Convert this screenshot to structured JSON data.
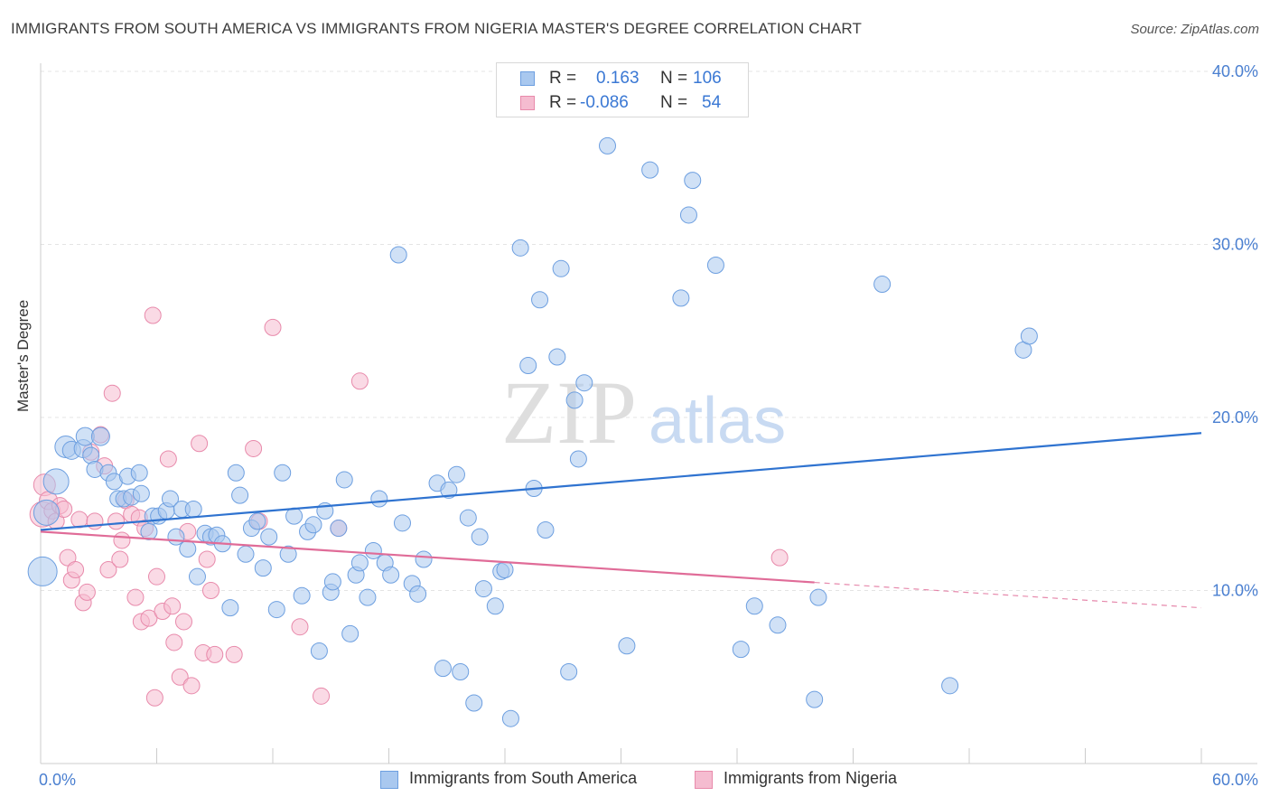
{
  "title": "IMMIGRANTS FROM SOUTH AMERICA VS IMMIGRANTS FROM NIGERIA MASTER'S DEGREE CORRELATION CHART",
  "source": "Source: ZipAtlas.com",
  "legend": {
    "rows": [
      {
        "r_label": "R =",
        "r_value": "0.163",
        "n_label": "N =",
        "n_value": "106"
      },
      {
        "r_label": "R =",
        "r_value": "-0.086",
        "n_label": "N =",
        "n_value": "54"
      }
    ]
  },
  "bottom_legend": {
    "series1": "Immigrants from South America",
    "series2": "Immigrants from Nigeria"
  },
  "colors": {
    "blue_fill": "#a9c8ef",
    "blue_stroke": "#6d9fe0",
    "blue_line": "#2f73d0",
    "pink_fill": "#f5bcd0",
    "pink_stroke": "#e88aab",
    "pink_line": "#e06c98",
    "accent_text": "#3a78d4"
  },
  "chart_data": {
    "type": "scatter",
    "ylabel": "Master's Degree",
    "xlim": [
      0,
      60
    ],
    "ylim": [
      0,
      41.5
    ],
    "x_ticks_labels": [
      "0.0%",
      "60.0%"
    ],
    "y_ticks": [
      10,
      20,
      30,
      40
    ],
    "y_ticks_labels": [
      "10.0%",
      "20.0%",
      "30.0%",
      "40.0%"
    ],
    "grid": true,
    "watermark": "ZIPatlas",
    "series": [
      {
        "name": "Immigrants from South America",
        "trend": {
          "x0": 0,
          "y0": 13.5,
          "x1": 60,
          "y1": 19.1,
          "dashed_from": null
        },
        "points": [
          [
            0.1,
            11.1,
            16
          ],
          [
            0.3,
            14.5,
            14
          ],
          [
            0.8,
            16.3,
            14
          ],
          [
            1.3,
            18.3,
            12
          ],
          [
            1.6,
            18.1,
            10
          ],
          [
            2.2,
            18.2,
            10
          ],
          [
            2.3,
            18.9,
            10
          ],
          [
            2.6,
            17.8,
            9
          ],
          [
            2.8,
            17.0,
            9
          ],
          [
            3.1,
            18.9,
            10
          ],
          [
            3.5,
            16.8,
            9
          ],
          [
            3.8,
            16.3,
            9
          ],
          [
            4.0,
            15.3,
            9
          ],
          [
            4.3,
            15.3,
            9
          ],
          [
            4.5,
            16.6,
            9
          ],
          [
            4.7,
            15.4,
            9
          ],
          [
            5.1,
            16.8,
            9
          ],
          [
            5.2,
            15.6,
            9
          ],
          [
            5.6,
            13.4,
            9
          ],
          [
            5.8,
            14.3,
            9
          ],
          [
            6.1,
            14.3,
            9
          ],
          [
            6.5,
            14.6,
            9
          ],
          [
            6.7,
            15.3,
            9
          ],
          [
            7.0,
            13.1,
            9
          ],
          [
            7.3,
            14.7,
            9
          ],
          [
            7.6,
            12.4,
            9
          ],
          [
            7.9,
            14.7,
            9
          ],
          [
            8.1,
            10.8,
            9
          ],
          [
            8.5,
            13.3,
            9
          ],
          [
            8.8,
            13.1,
            9
          ],
          [
            9.1,
            13.2,
            9
          ],
          [
            9.4,
            12.7,
            9
          ],
          [
            9.8,
            9.0,
            9
          ],
          [
            10.1,
            16.8,
            9
          ],
          [
            10.3,
            15.5,
            9
          ],
          [
            10.6,
            12.1,
            9
          ],
          [
            10.9,
            13.6,
            9
          ],
          [
            11.2,
            14.0,
            9
          ],
          [
            11.5,
            11.3,
            9
          ],
          [
            11.8,
            13.1,
            9
          ],
          [
            12.2,
            8.9,
            9
          ],
          [
            12.5,
            16.8,
            9
          ],
          [
            12.8,
            12.1,
            9
          ],
          [
            13.1,
            14.3,
            9
          ],
          [
            13.5,
            9.7,
            9
          ],
          [
            13.8,
            13.4,
            9
          ],
          [
            14.1,
            13.8,
            9
          ],
          [
            14.4,
            6.5,
            9
          ],
          [
            14.7,
            14.6,
            9
          ],
          [
            15.0,
            9.9,
            9
          ],
          [
            15.1,
            10.5,
            9
          ],
          [
            15.4,
            13.6,
            9
          ],
          [
            15.7,
            16.4,
            9
          ],
          [
            16.0,
            7.5,
            9
          ],
          [
            16.3,
            10.9,
            9
          ],
          [
            16.5,
            11.6,
            9
          ],
          [
            16.9,
            9.6,
            9
          ],
          [
            17.2,
            12.3,
            9
          ],
          [
            17.5,
            15.3,
            9
          ],
          [
            17.8,
            11.6,
            9
          ],
          [
            18.1,
            10.9,
            9
          ],
          [
            18.5,
            29.4,
            9
          ],
          [
            18.7,
            13.9,
            9
          ],
          [
            19.2,
            10.4,
            9
          ],
          [
            19.5,
            9.8,
            9
          ],
          [
            19.8,
            11.8,
            9
          ],
          [
            20.5,
            16.2,
            9
          ],
          [
            20.8,
            5.5,
            9
          ],
          [
            21.1,
            15.8,
            9
          ],
          [
            21.5,
            16.7,
            9
          ],
          [
            21.7,
            5.3,
            9
          ],
          [
            22.1,
            14.2,
            9
          ],
          [
            22.4,
            3.5,
            9
          ],
          [
            22.7,
            13.1,
            9
          ],
          [
            22.9,
            10.1,
            9
          ],
          [
            23.5,
            9.1,
            9
          ],
          [
            23.8,
            11.1,
            9
          ],
          [
            24.0,
            11.2,
            9
          ],
          [
            24.3,
            2.6,
            9
          ],
          [
            24.8,
            29.8,
            9
          ],
          [
            25.2,
            23.0,
            9
          ],
          [
            25.5,
            15.9,
            9
          ],
          [
            25.8,
            26.8,
            9
          ],
          [
            26.1,
            13.5,
            9
          ],
          [
            26.7,
            23.5,
            9
          ],
          [
            26.9,
            28.6,
            9
          ],
          [
            27.3,
            5.3,
            9
          ],
          [
            27.6,
            21.0,
            9
          ],
          [
            27.8,
            17.6,
            9
          ],
          [
            28.1,
            22.0,
            9
          ],
          [
            29.3,
            35.7,
            9
          ],
          [
            30.3,
            6.8,
            9
          ],
          [
            31.5,
            34.3,
            9
          ],
          [
            33.1,
            26.9,
            9
          ],
          [
            33.5,
            31.7,
            9
          ],
          [
            33.7,
            33.7,
            9
          ],
          [
            34.9,
            28.8,
            9
          ],
          [
            36.2,
            6.6,
            9
          ],
          [
            36.9,
            9.1,
            9
          ],
          [
            38.1,
            8.0,
            9
          ],
          [
            40.0,
            3.7,
            9
          ],
          [
            40.2,
            9.6,
            9
          ],
          [
            43.5,
            27.7,
            9
          ],
          [
            47.0,
            4.5,
            9
          ],
          [
            50.8,
            23.9,
            9
          ],
          [
            51.1,
            24.7,
            9
          ]
        ]
      },
      {
        "name": "Immigrants from Nigeria",
        "trend": {
          "x0": 0,
          "y0": 13.4,
          "x1": 60,
          "y1": 9.0,
          "dashed_from": 40.0
        },
        "points": [
          [
            0.1,
            14.4,
            14
          ],
          [
            0.2,
            16.1,
            12
          ],
          [
            0.4,
            15.2,
            10
          ],
          [
            0.6,
            14.6,
            9
          ],
          [
            0.8,
            14.0,
            9
          ],
          [
            1.0,
            14.9,
            9
          ],
          [
            1.2,
            14.7,
            9
          ],
          [
            1.4,
            11.9,
            9
          ],
          [
            1.6,
            10.6,
            9
          ],
          [
            1.8,
            11.2,
            9
          ],
          [
            2.0,
            14.1,
            9
          ],
          [
            2.2,
            9.3,
            9
          ],
          [
            2.4,
            9.9,
            9
          ],
          [
            2.6,
            18.0,
            9
          ],
          [
            2.8,
            14.0,
            9
          ],
          [
            3.1,
            19.0,
            9
          ],
          [
            3.3,
            17.2,
            9
          ],
          [
            3.5,
            11.2,
            9
          ],
          [
            3.7,
            21.4,
            9
          ],
          [
            3.9,
            14.0,
            9
          ],
          [
            4.1,
            11.8,
            9
          ],
          [
            4.2,
            12.9,
            9
          ],
          [
            4.4,
            15.2,
            9
          ],
          [
            4.7,
            14.4,
            9
          ],
          [
            4.9,
            9.6,
            9
          ],
          [
            5.1,
            14.2,
            9
          ],
          [
            5.2,
            8.2,
            9
          ],
          [
            5.4,
            13.6,
            9
          ],
          [
            5.6,
            8.4,
            9
          ],
          [
            5.8,
            25.9,
            9
          ],
          [
            5.9,
            3.8,
            9
          ],
          [
            6.0,
            10.8,
            9
          ],
          [
            6.3,
            8.8,
            9
          ],
          [
            6.6,
            17.6,
            9
          ],
          [
            6.8,
            9.1,
            9
          ],
          [
            6.9,
            7.0,
            9
          ],
          [
            7.2,
            5.0,
            9
          ],
          [
            7.4,
            8.2,
            9
          ],
          [
            7.6,
            13.4,
            9
          ],
          [
            7.8,
            4.5,
            9
          ],
          [
            8.2,
            18.5,
            9
          ],
          [
            8.4,
            6.4,
            9
          ],
          [
            8.6,
            11.8,
            9
          ],
          [
            8.8,
            10.0,
            9
          ],
          [
            9.0,
            6.3,
            9
          ],
          [
            10.0,
            6.3,
            9
          ],
          [
            11.0,
            18.2,
            9
          ],
          [
            11.3,
            14.0,
            9
          ],
          [
            12.0,
            25.2,
            9
          ],
          [
            13.4,
            7.9,
            9
          ],
          [
            14.5,
            3.9,
            9
          ],
          [
            15.4,
            13.6,
            9
          ],
          [
            16.5,
            22.1,
            9
          ],
          [
            38.2,
            11.9,
            9
          ]
        ]
      }
    ]
  }
}
